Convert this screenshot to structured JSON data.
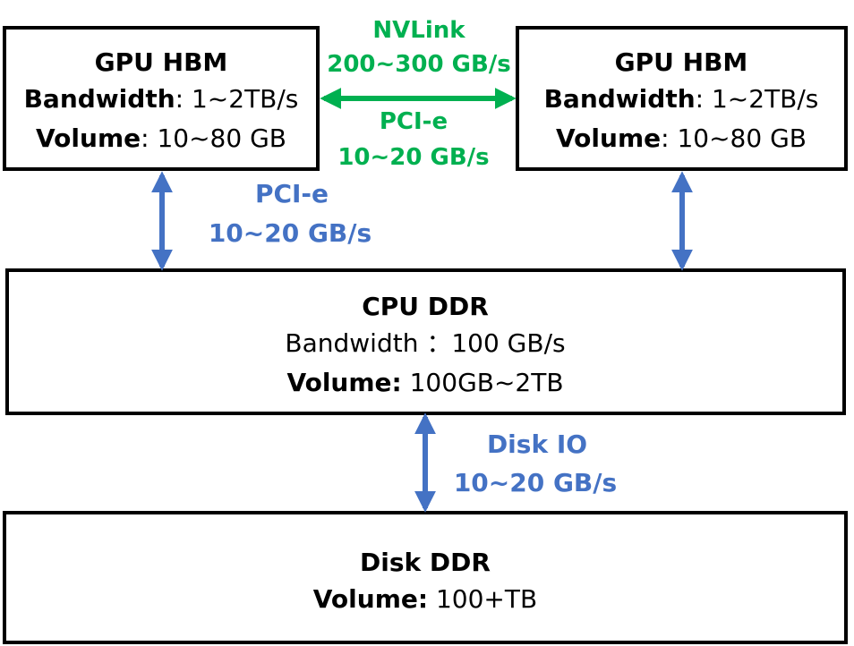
{
  "nodes": [
    {
      "title": "GPU HBM",
      "lines": [
        {
          "label": "Bandwidth",
          "value": ": 1~2TB/s"
        },
        {
          "label": "Volume",
          "value": ": 10~80 GB"
        }
      ]
    },
    {
      "title": "GPU HBM",
      "lines": [
        {
          "label": "Bandwidth",
          "value": ": 1~2TB/s"
        },
        {
          "label": "Volume",
          "value": ": 10~80 GB"
        }
      ]
    },
    {
      "title": "CPU DDR",
      "lines": [
        {
          "label": "",
          "value": "Bandwidth ：100 GB/s"
        },
        {
          "label": "Volume:",
          "value": " 100GB~2TB"
        }
      ]
    },
    {
      "title": "Disk DDR",
      "lines": [
        {
          "label": "Volume:",
          "value": " 100+TB"
        }
      ]
    }
  ],
  "edges": [
    {
      "name": "NVLink",
      "rate": "200~300 GB/s"
    },
    {
      "name": "PCI-e",
      "rate": "10~20 GB/s"
    },
    {
      "name": "PCI-e",
      "rate": "10~20 GB/s"
    },
    {
      "name": "Disk IO",
      "rate": "10~20 GB/s"
    }
  ]
}
